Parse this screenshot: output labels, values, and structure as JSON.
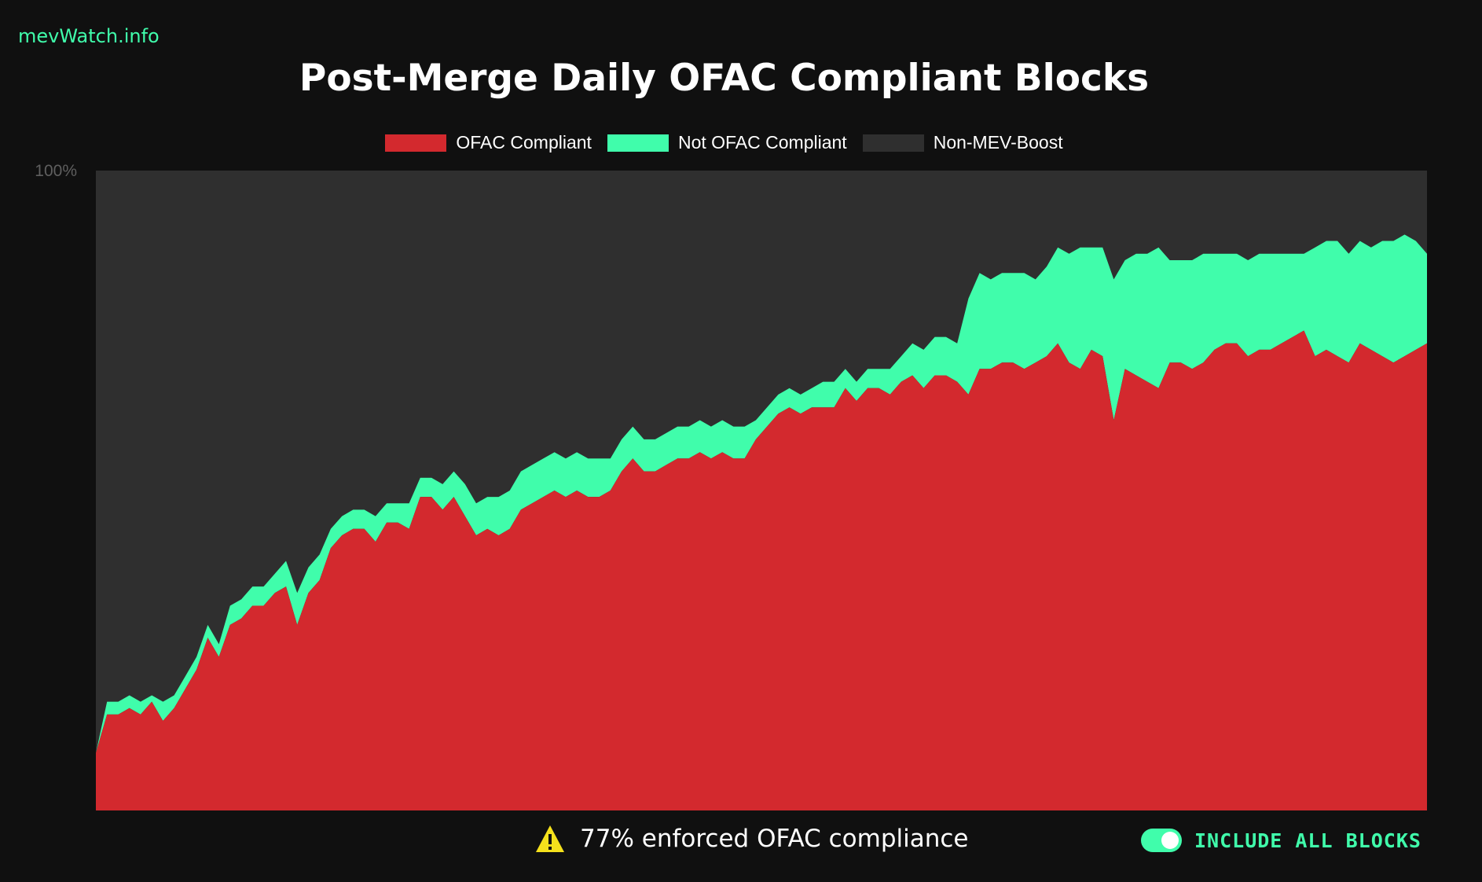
{
  "brand": "mevWatch.info",
  "footer": {
    "warning_text": "77% enforced OFAC compliance",
    "toggle_label": "INCLUDE ALL BLOCKS",
    "toggle_on": true
  },
  "colors": {
    "ofac": "#d3292e",
    "not_ofac": "#40fdab",
    "non_mev": "#2f2f2f",
    "accent": "#40fdab",
    "background": "#101010",
    "warning": "#f5e11c"
  },
  "chart_data": {
    "type": "area",
    "stacked": true,
    "title": "Post-Merge Daily OFAC Compliant Blocks",
    "xlabel": "",
    "ylabel": "",
    "y_ticks": [
      "100%"
    ],
    "ylim": [
      0,
      100
    ],
    "legend_position": "top-center",
    "series": [
      {
        "name": "OFAC Compliant",
        "color": "#d3292e",
        "values": [
          9,
          15,
          15,
          16,
          15,
          17,
          14,
          16,
          19,
          22,
          27,
          24,
          29,
          30,
          32,
          32,
          34,
          35,
          29,
          34,
          36,
          41,
          43,
          44,
          44,
          42,
          45,
          45,
          44,
          49,
          49,
          47,
          49,
          46,
          43,
          44,
          43,
          44,
          47,
          48,
          49,
          50,
          49,
          50,
          49,
          49,
          50,
          53,
          55,
          53,
          53,
          54,
          55,
          55,
          56,
          55,
          56,
          55,
          55,
          58,
          60,
          62,
          63,
          62,
          63,
          63,
          63,
          66,
          64,
          66,
          66,
          65,
          67,
          68,
          66,
          68,
          68,
          67,
          65,
          69,
          69,
          70,
          70,
          69,
          70,
          71,
          73,
          70,
          69,
          72,
          71,
          61,
          69,
          68,
          67,
          66,
          70,
          70,
          69,
          70,
          72,
          73,
          73,
          71,
          72,
          72,
          73,
          74,
          75,
          71,
          72,
          71,
          70,
          73,
          72,
          71,
          70,
          71,
          72,
          73
        ]
      },
      {
        "name": "Not OFAC Compliant",
        "color": "#40fdab",
        "values": [
          0,
          2,
          2,
          2,
          2,
          1,
          3,
          2,
          2,
          2,
          2,
          2,
          3,
          3,
          3,
          3,
          3,
          4,
          5,
          4,
          4,
          3,
          3,
          3,
          3,
          4,
          3,
          3,
          4,
          3,
          3,
          4,
          4,
          5,
          5,
          5,
          6,
          6,
          6,
          6,
          6,
          6,
          6,
          6,
          6,
          6,
          5,
          5,
          5,
          5,
          5,
          5,
          5,
          5,
          5,
          5,
          5,
          5,
          5,
          3,
          3,
          3,
          3,
          3,
          3,
          4,
          4,
          3,
          3,
          3,
          3,
          4,
          4,
          5,
          6,
          6,
          6,
          6,
          15,
          15,
          14,
          14,
          14,
          15,
          13,
          14,
          15,
          17,
          19,
          16,
          17,
          22,
          17,
          19,
          20,
          22,
          16,
          16,
          17,
          17,
          15,
          14,
          14,
          15,
          15,
          15,
          14,
          13,
          12,
          17,
          17,
          18,
          17,
          16,
          16,
          18,
          19,
          19,
          17,
          14
        ]
      },
      {
        "name": "Non-MEV-Boost",
        "color": "#2f2f2f",
        "values": [
          91,
          83,
          83,
          82,
          83,
          82,
          83,
          82,
          79,
          76,
          71,
          74,
          68,
          67,
          65,
          65,
          63,
          61,
          66,
          62,
          60,
          56,
          54,
          53,
          53,
          54,
          52,
          52,
          52,
          48,
          48,
          49,
          47,
          49,
          52,
          51,
          51,
          50,
          47,
          46,
          45,
          44,
          45,
          44,
          45,
          45,
          45,
          42,
          40,
          42,
          42,
          41,
          40,
          40,
          39,
          40,
          39,
          40,
          40,
          39,
          37,
          35,
          34,
          35,
          34,
          33,
          33,
          31,
          33,
          31,
          31,
          31,
          29,
          27,
          28,
          26,
          26,
          27,
          20,
          16,
          17,
          16,
          16,
          16,
          17,
          15,
          12,
          13,
          12,
          12,
          12,
          17,
          14,
          13,
          13,
          12,
          14,
          14,
          14,
          13,
          13,
          13,
          13,
          14,
          13,
          13,
          13,
          13,
          13,
          12,
          11,
          11,
          13,
          11,
          12,
          11,
          11,
          10,
          11,
          13
        ]
      }
    ]
  }
}
